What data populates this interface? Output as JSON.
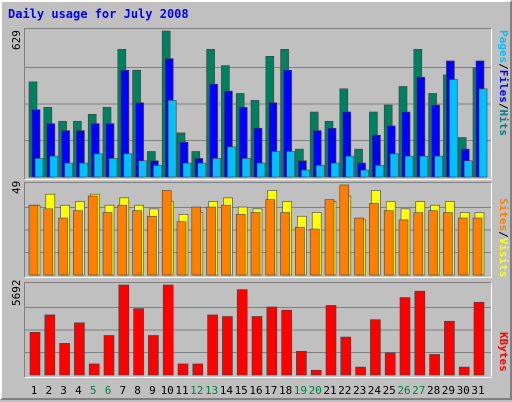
{
  "title": "Daily usage for July 2008",
  "panel1": {
    "max_label": "629",
    "legend": [
      {
        "text": "Pages",
        "color": "#00c0ff"
      },
      {
        "text": "/",
        "color": "#000000"
      },
      {
        "text": "Files",
        "color": "#0000ff"
      },
      {
        "text": "/",
        "color": "#000000"
      },
      {
        "text": "Hits",
        "color": "#008080"
      }
    ]
  },
  "panel2": {
    "max_label": "49",
    "legend": [
      {
        "text": "Sites",
        "color": "#ff8000"
      },
      {
        "text": "/",
        "color": "#000000"
      },
      {
        "text": "Visits",
        "color": "#ffff00"
      }
    ]
  },
  "panel3": {
    "max_label": "5692",
    "legend": [
      {
        "text": "KBytes",
        "color": "#ff0000"
      }
    ]
  },
  "colors": {
    "hits": "#008060",
    "files": "#0000ff",
    "pages": "#00c0ff",
    "visits": "#ffff00",
    "sites": "#ff8000",
    "kbytes": "#ff0000",
    "weekend_label": "#008040",
    "weekday_label": "#000000"
  },
  "chart_data": [
    {
      "type": "bar",
      "title": "Daily usage for July 2008",
      "categories": [
        "1",
        "2",
        "3",
        "4",
        "5",
        "6",
        "7",
        "8",
        "9",
        "10",
        "11",
        "12",
        "13",
        "14",
        "15",
        "16",
        "17",
        "18",
        "19",
        "20",
        "21",
        "22",
        "23",
        "24",
        "25",
        "26",
        "27",
        "28",
        "29",
        "30",
        "31"
      ],
      "weekend_days": [
        "5",
        "6",
        "12",
        "13",
        "19",
        "20",
        "26",
        "27"
      ],
      "ylim": [
        0,
        629
      ],
      "series": [
        {
          "name": "Hits",
          "values": [
            410,
            300,
            240,
            240,
            270,
            300,
            550,
            460,
            110,
            629,
            190,
            110,
            550,
            480,
            360,
            330,
            520,
            550,
            120,
            280,
            240,
            380,
            120,
            280,
            310,
            390,
            550,
            360,
            440,
            170,
            470
          ]
        },
        {
          "name": "Files",
          "values": [
            290,
            230,
            200,
            200,
            230,
            230,
            460,
            320,
            70,
            510,
            150,
            80,
            400,
            370,
            300,
            210,
            320,
            460,
            70,
            200,
            210,
            280,
            60,
            180,
            220,
            280,
            430,
            310,
            500,
            120,
            500
          ]
        },
        {
          "name": "Pages",
          "values": [
            80,
            90,
            60,
            60,
            100,
            80,
            100,
            70,
            50,
            330,
            60,
            60,
            80,
            130,
            80,
            60,
            110,
            110,
            30,
            50,
            60,
            90,
            30,
            50,
            100,
            90,
            90,
            90,
            420,
            70,
            380
          ]
        }
      ]
    },
    {
      "type": "bar",
      "ylim": [
        0,
        49
      ],
      "series": [
        {
          "name": "Visits",
          "values": [
            38,
            44,
            38,
            40,
            44,
            38,
            42,
            38,
            36,
            40,
            33,
            34,
            40,
            42,
            37,
            36,
            46,
            40,
            32,
            34,
            40,
            43,
            30,
            46,
            40,
            36,
            40,
            38,
            40,
            34,
            34
          ]
        },
        {
          "name": "Sites",
          "values": [
            38,
            36,
            31,
            35,
            43,
            34,
            38,
            35,
            32,
            46,
            29,
            37,
            37,
            38,
            33,
            34,
            41,
            34,
            26,
            25,
            41,
            49,
            31,
            39,
            35,
            30,
            34,
            35,
            34,
            31,
            31
          ]
        }
      ]
    },
    {
      "type": "bar",
      "ylim": [
        0,
        5692
      ],
      "series": [
        {
          "name": "KBytes",
          "values": [
            2700,
            3800,
            2000,
            3300,
            700,
            2500,
            5692,
            4200,
            2500,
            5692,
            700,
            700,
            3800,
            3700,
            5400,
            3700,
            4300,
            4100,
            1500,
            300,
            4400,
            2400,
            500,
            3500,
            1400,
            4900,
            5300,
            1300,
            3400,
            500,
            4600
          ]
        }
      ]
    }
  ]
}
